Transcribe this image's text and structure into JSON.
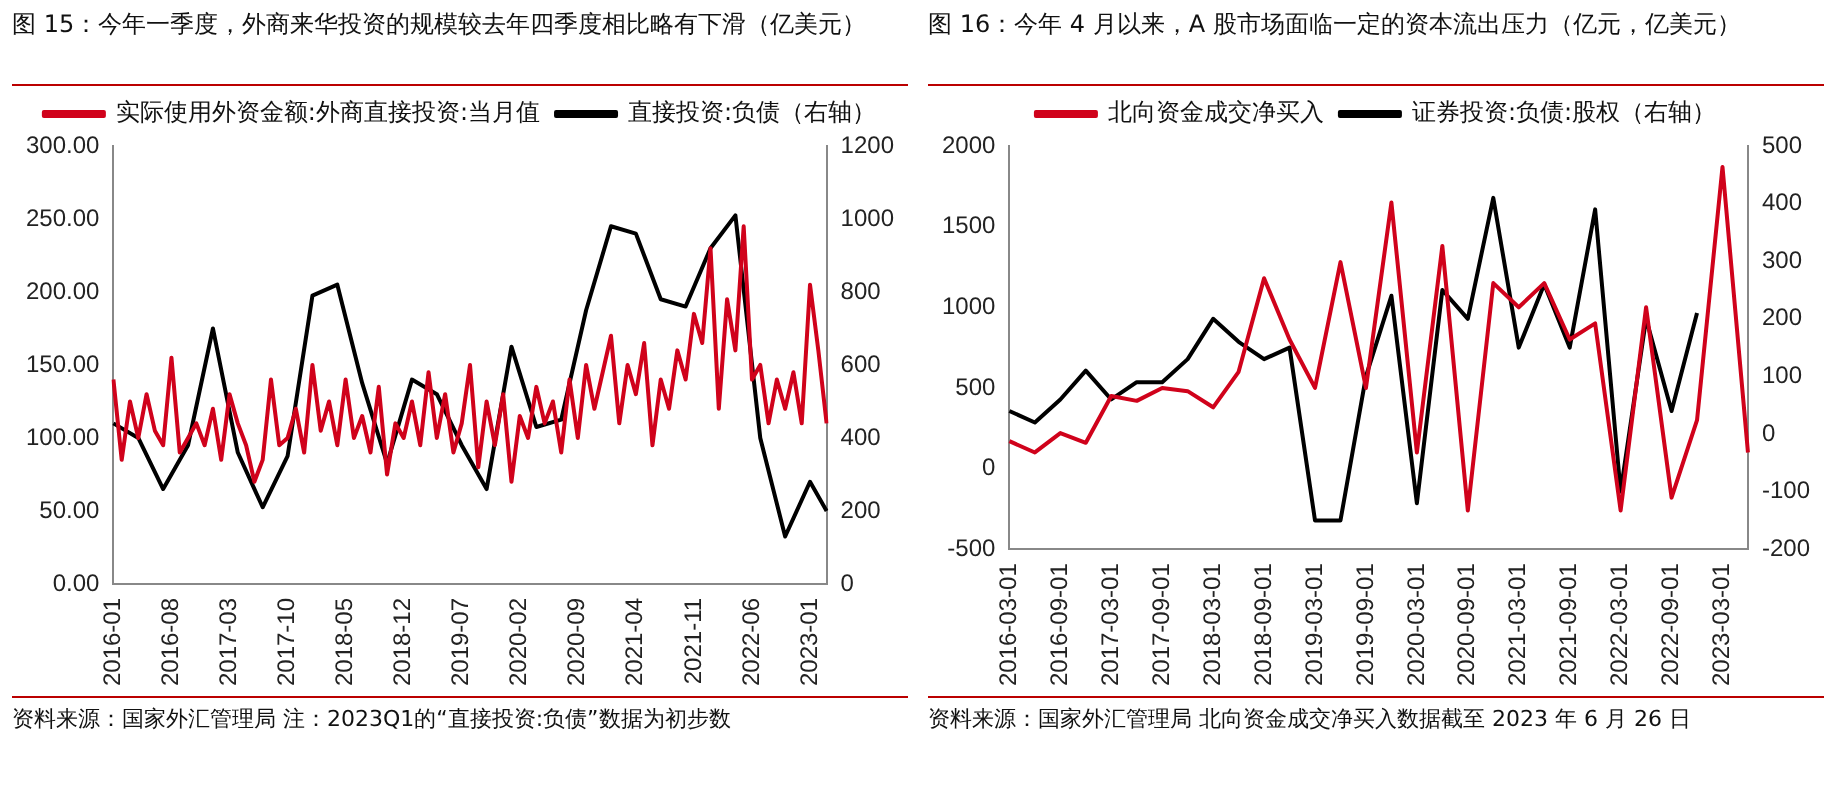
{
  "chart_data": [
    {
      "type": "line",
      "title": "图 15：今年一季度，外商来华投资的规模较去年四季度相比略有下滑（亿美元）",
      "categories": [
        "2016-01",
        null,
        null,
        null,
        null,
        null,
        null,
        "2016-08",
        null,
        null,
        null,
        null,
        null,
        null,
        "2017-03",
        null,
        null,
        null,
        null,
        null,
        null,
        "2017-10",
        null,
        null,
        null,
        null,
        null,
        null,
        "2018-05",
        null,
        null,
        null,
        null,
        null,
        null,
        "2018-12",
        null,
        null,
        null,
        null,
        null,
        null,
        "2019-07",
        null,
        null,
        null,
        null,
        null,
        null,
        "2020-02",
        null,
        null,
        null,
        null,
        null,
        null,
        "2020-09",
        null,
        null,
        null,
        null,
        null,
        null,
        "2021-04",
        null,
        null,
        null,
        null,
        null,
        null,
        "2021-11",
        null,
        null,
        null,
        null,
        null,
        null,
        "2022-06",
        null,
        null,
        null,
        null,
        null,
        null,
        "2023-01",
        null,
        null
      ],
      "series": [
        {
          "name": "实际使用外资金额:外商直接投资:当月值",
          "color": "#d0021b",
          "values": [
            140,
            85,
            125,
            100,
            130,
            105,
            95,
            155,
            90,
            100,
            110,
            95,
            120,
            85,
            130,
            110,
            95,
            70,
            85,
            140,
            95,
            100,
            120,
            90,
            150,
            105,
            125,
            95,
            140,
            100,
            115,
            90,
            135,
            75,
            110,
            100,
            125,
            95,
            145,
            100,
            130,
            90,
            110,
            150,
            80,
            125,
            95,
            130,
            70,
            115,
            100,
            135,
            110,
            125,
            90,
            140,
            100,
            150,
            120,
            145,
            170,
            110,
            150,
            130,
            165,
            95,
            140,
            120,
            160,
            140,
            185,
            165,
            230,
            120,
            195,
            160,
            245,
            140,
            150,
            110,
            140,
            120,
            145,
            110,
            205,
            160,
            110
          ]
        },
        {
          "name": "直接投资:负债（右轴）",
          "color": "#000000",
          "axis": "y2",
          "values": [
            440,
            null,
            null,
            400,
            null,
            null,
            260,
            null,
            null,
            380,
            null,
            null,
            700,
            null,
            null,
            360,
            null,
            null,
            210,
            null,
            null,
            350,
            null,
            null,
            790,
            null,
            null,
            820,
            null,
            null,
            550,
            null,
            null,
            330,
            null,
            null,
            560,
            null,
            null,
            520,
            null,
            null,
            380,
            null,
            null,
            260,
            null,
            null,
            650,
            null,
            null,
            430,
            null,
            null,
            450,
            null,
            null,
            750,
            null,
            null,
            980,
            null,
            null,
            960,
            null,
            null,
            780,
            null,
            null,
            760,
            null,
            null,
            920,
            null,
            null,
            1010,
            null,
            null,
            400,
            null,
            null,
            130,
            null,
            null,
            280,
            null,
            200
          ]
        }
      ],
      "ylim": [
        0,
        300
      ],
      "yticks": [
        {
          "value": 0,
          "label": "0.00"
        },
        {
          "value": 50,
          "label": "50.00"
        },
        {
          "value": 100,
          "label": "100.00"
        },
        {
          "value": 150,
          "label": "150.00"
        },
        {
          "value": 200,
          "label": "200.00"
        },
        {
          "value": 250,
          "label": "250.00"
        },
        {
          "value": 300,
          "label": "300.00"
        }
      ],
      "y2lim": [
        0,
        1200
      ],
      "y2ticks": [
        0,
        200,
        400,
        600,
        800,
        1000,
        1200
      ],
      "legend": "top",
      "grid": false,
      "marker": "none",
      "annotations": [
        "资料来源：国家外汇管理局 注：2023Q1的“直接投资:负债”数据为初步数"
      ]
    },
    {
      "type": "line",
      "title": "图 16：今年 4 月以来，A 股市场面临一定的资本流出压力（亿元，亿美元）",
      "categories": [
        "2016-03-01",
        null,
        "2016-09-01",
        null,
        "2017-03-01",
        null,
        "2017-09-01",
        null,
        "2018-03-01",
        null,
        "2018-09-01",
        null,
        "2019-03-01",
        null,
        "2019-09-01",
        null,
        "2020-03-01",
        null,
        "2020-09-01",
        null,
        "2021-03-01",
        null,
        "2021-09-01",
        null,
        "2022-03-01",
        null,
        "2022-09-01",
        null,
        "2023-03-01",
        null
      ],
      "series": [
        {
          "name": "北向资金成交净买入",
          "color": "#d0021b",
          "values": [
            170,
            100,
            220,
            160,
            450,
            420,
            500,
            480,
            380,
            600,
            1180,
            800,
            500,
            1280,
            500,
            1650,
            100,
            1380,
            -260,
            1150,
            1000,
            1150,
            800,
            900,
            -260,
            1000,
            -180,
            300,
            1870,
            100
          ]
        },
        {
          "name": "证券投资:负债:股权（右轴）",
          "color": "#000000",
          "axis": "y2",
          "values": [
            40,
            20,
            60,
            110,
            60,
            90,
            90,
            130,
            200,
            160,
            130,
            150,
            -150,
            -150,
            100,
            240,
            -120,
            250,
            200,
            410,
            150,
            260,
            150,
            390,
            -100,
            200,
            40,
            210,
            null,
            null
          ]
        }
      ],
      "ylim": [
        -500,
        2000
      ],
      "yticks": [
        -500,
        0,
        500,
        1000,
        1500,
        2000
      ],
      "y2lim": [
        -200,
        500
      ],
      "y2ticks": [
        -200,
        -100,
        0,
        100,
        200,
        300,
        400,
        500
      ],
      "legend": "top",
      "grid": false,
      "marker": "none",
      "annotations": [
        "资料来源：国家外汇管理局 北向资金成交净买入数据截至 2023 年 6 月 26 日"
      ]
    }
  ]
}
